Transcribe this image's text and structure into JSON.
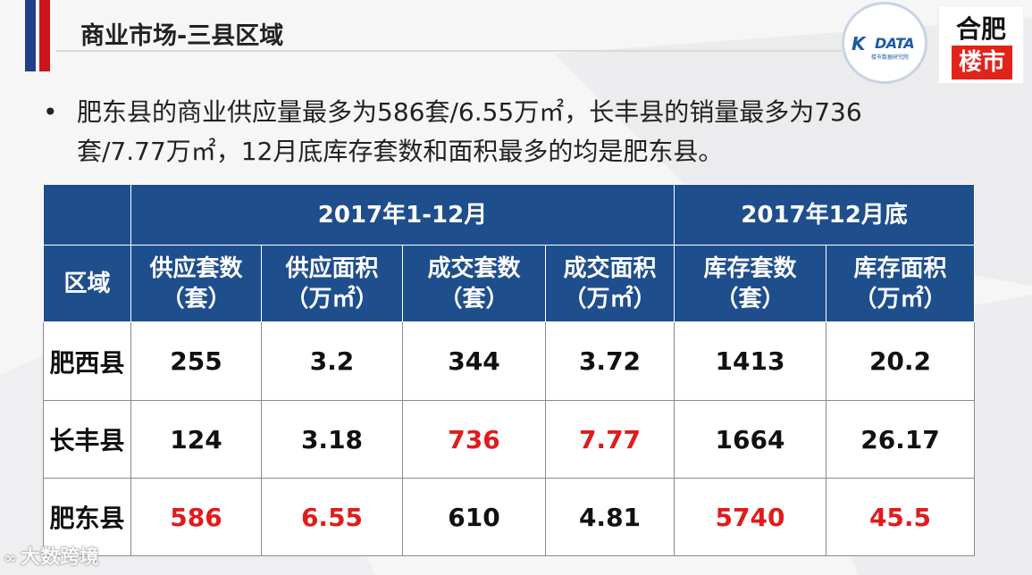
{
  "header": {
    "title": "商业市场-三县区域"
  },
  "logos": {
    "kdata": {
      "mark": "K",
      "brand": "DATA",
      "sub": "楼市数据研究院"
    },
    "hefei": {
      "top": "合肥",
      "bottom": "楼市"
    }
  },
  "bullet": {
    "text": "肥东县的商业供应量最多为586套/6.55万㎡，长丰县的销量最多为736套/7.77万㎡，12月底库存套数和面积最多的均是肥东县。"
  },
  "table": {
    "group_headers": [
      "2017年1-12月",
      "2017年12月底"
    ],
    "region_header": "区域",
    "columns": [
      {
        "name": "供应套数",
        "unit": "（套）"
      },
      {
        "name": "供应面积",
        "unit": "（万㎡）"
      },
      {
        "name": "成交套数",
        "unit": "（套）"
      },
      {
        "name": "成交面积",
        "unit": "（万㎡）"
      },
      {
        "name": "库存套数",
        "unit": "（套）"
      },
      {
        "name": "库存面积",
        "unit": "（万㎡）"
      }
    ],
    "rows": [
      {
        "region": "肥西县",
        "values": [
          "255",
          "3.2",
          "344",
          "3.72",
          "1413",
          "20.2"
        ],
        "highlight": [
          false,
          false,
          false,
          false,
          false,
          false
        ]
      },
      {
        "region": "长丰县",
        "values": [
          "124",
          "3.18",
          "736",
          "7.77",
          "1664",
          "26.17"
        ],
        "highlight": [
          false,
          false,
          true,
          true,
          false,
          false
        ]
      },
      {
        "region": "肥东县",
        "values": [
          "586",
          "6.55",
          "610",
          "4.81",
          "5740",
          "45.5"
        ],
        "highlight": [
          true,
          true,
          false,
          false,
          true,
          true
        ]
      }
    ],
    "highlight_color": "#e01b1b"
  },
  "watermark": {
    "icon": "∞",
    "text": "大数跨境"
  }
}
